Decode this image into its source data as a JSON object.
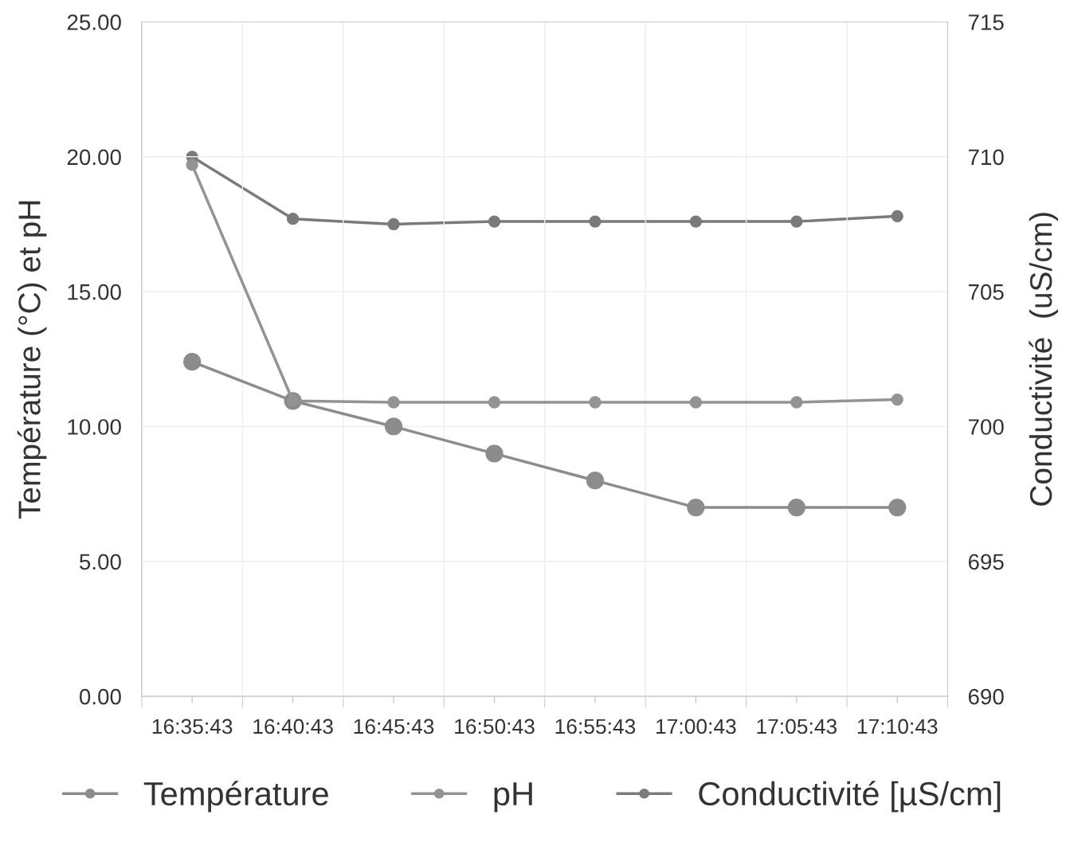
{
  "chart_data": {
    "type": "line",
    "ylabel": "Température (°C) et pH",
    "y2label": "Conductivité  (uS/cm)",
    "categories": [
      "16:35:43",
      "16:40:43",
      "16:45:43",
      "16:50:43",
      "16:55:43",
      "17:00:43",
      "17:05:43",
      "17:10:43"
    ],
    "series": [
      {
        "name": "Température",
        "color": "#8c8c8c",
        "values": [
          12.4,
          10.95,
          10.0,
          9.0,
          8.0,
          7.0,
          7.0,
          7.0
        ]
      },
      {
        "name": "pH",
        "color": "#939393",
        "values": [
          19.7,
          10.95,
          10.9,
          10.9,
          10.9,
          10.9,
          10.9,
          11.0
        ]
      },
      {
        "name": "Conductivité [µS/cm]",
        "color": "#7a7a7a",
        "axis": "y2",
        "values": [
          710.0,
          707.7,
          707.5,
          707.6,
          707.6,
          707.6,
          707.6,
          707.8
        ]
      }
    ],
    "ylim": [
      0,
      25
    ],
    "yticks": [
      {
        "value": 0,
        "label": "0.00"
      },
      {
        "value": 5,
        "label": "5.00"
      },
      {
        "value": 10,
        "label": "10.00"
      },
      {
        "value": 15,
        "label": "15.00"
      },
      {
        "value": 20,
        "label": "20.00"
      },
      {
        "value": 25,
        "label": "25.00"
      }
    ],
    "y2lim": [
      690,
      715
    ],
    "y2ticks": [
      690,
      695,
      700,
      705,
      710,
      715
    ],
    "grid": true,
    "legend": "bottom",
    "marker": "circle",
    "line_style": "solid"
  }
}
